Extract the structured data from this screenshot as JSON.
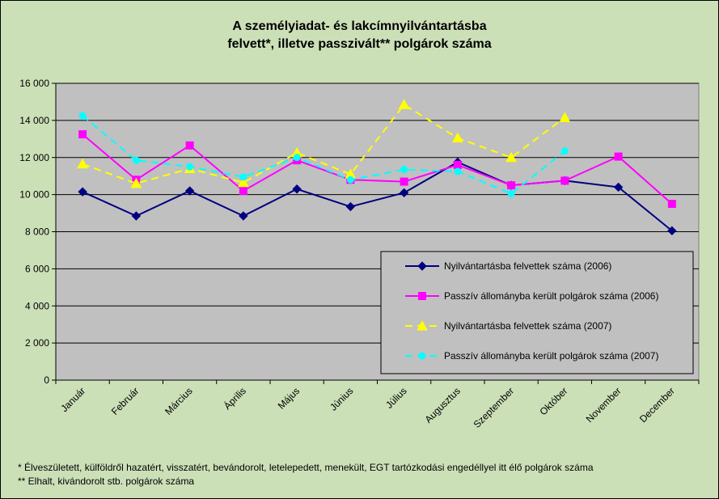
{
  "chart_data": {
    "type": "line",
    "title_lines": [
      "A személyiadat- és lakcímnyilvántartásba",
      "felvett*, illetve passzivált** polgárok száma"
    ],
    "xlabel": "",
    "ylabel": "",
    "ylim": [
      0,
      16000
    ],
    "yticks": [
      0,
      2000,
      4000,
      6000,
      8000,
      10000,
      12000,
      14000,
      16000
    ],
    "ytick_labels": [
      "0",
      "2 000",
      "4 000",
      "6 000",
      "8 000",
      "10 000",
      "12 000",
      "14 000",
      "16 000"
    ],
    "grid": true,
    "legend_position": "bottom-right inside",
    "categories": [
      "Január",
      "Február",
      "Március",
      "Április",
      "Május",
      "Június",
      "Július",
      "Augusztus",
      "Szeptember",
      "Október",
      "November",
      "December"
    ],
    "series": [
      {
        "name": "Nyilvántartásba felvettek száma (2006)",
        "color": "#000080",
        "dash": "solid",
        "marker": "diamond",
        "values": [
          10150,
          8850,
          10200,
          8850,
          10300,
          9350,
          10100,
          11750,
          10500,
          10750,
          10400,
          8050
        ]
      },
      {
        "name": "Passzív állományba került polgárok száma (2006)",
        "color": "#ff00ff",
        "dash": "solid",
        "marker": "square",
        "values": [
          13250,
          10800,
          12650,
          10200,
          11850,
          10800,
          10700,
          11600,
          10500,
          10750,
          12050,
          9500
        ]
      },
      {
        "name": "Nyilvántartásba felvettek száma (2007)",
        "color": "#ffff00",
        "dash": "dashed",
        "marker": "triangle",
        "values": [
          11650,
          10600,
          11400,
          10650,
          12250,
          11100,
          14850,
          13050,
          12000,
          14150,
          null,
          null
        ]
      },
      {
        "name": "Passzív állományba került polgárok száma (2007)",
        "color": "#00ffff",
        "dash": "dashed",
        "marker": "circle",
        "values": [
          14250,
          11850,
          11500,
          10950,
          12000,
          10800,
          11350,
          11250,
          10050,
          12350,
          null,
          null
        ]
      }
    ],
    "plot_background": "#c0c0c0",
    "page_background": "#cce0b8"
  },
  "footnotes": [
    "* Élveszületett, külföldről hazatért, visszatért, bevándorolt, letelepedett, menekült, EGT tartózkodási engedéllyel itt élő  polgárok száma",
    "** Elhalt, kivándorolt stb. polgárok száma"
  ]
}
